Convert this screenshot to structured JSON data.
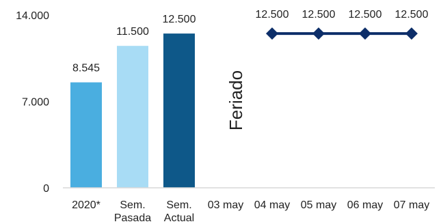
{
  "chart_data": {
    "type": "bar",
    "categories": [
      [
        "2020*"
      ],
      [
        "Sem.",
        "Pasada"
      ],
      [
        "Sem.",
        "Actual"
      ],
      [
        "03 may"
      ],
      [
        "04 may"
      ],
      [
        "05 may"
      ],
      [
        "06 may"
      ],
      [
        "07 may"
      ]
    ],
    "bars": [
      {
        "category_index": 0,
        "value": 8545,
        "label": "8.545",
        "color": "#4aaee0"
      },
      {
        "category_index": 1,
        "value": 11500,
        "label": "11.500",
        "color": "#a8dcf5"
      },
      {
        "category_index": 2,
        "value": 12500,
        "label": "12.500",
        "color": "#0e5889"
      }
    ],
    "line": {
      "category_indices": [
        4,
        5,
        6,
        7
      ],
      "values": [
        12500,
        12500,
        12500,
        12500
      ],
      "labels": [
        "12.500",
        "12.500",
        "12.500",
        "12.500"
      ],
      "color": "#0d2e69",
      "marker": "diamond"
    },
    "y_ticks": [
      {
        "value": 0,
        "label": "0"
      },
      {
        "value": 7000,
        "label": "7.000"
      },
      {
        "value": 14000,
        "label": "14.000"
      }
    ],
    "ylim": [
      0,
      14000
    ],
    "annotation": {
      "text": "Feriado",
      "category_index": 3,
      "orientation": "vertical"
    },
    "axis_color": "#d9d9d9",
    "grid": false
  }
}
